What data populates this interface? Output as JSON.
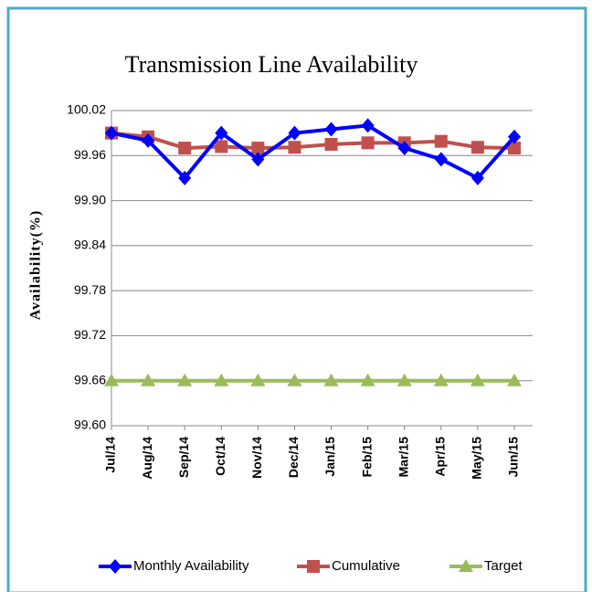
{
  "chart_data": {
    "type": "line",
    "title": "Transmission  Line Availability",
    "y_label": "Availability(%)",
    "categories": [
      "Jul/14",
      "Aug/14",
      "Sep/14",
      "Oct/14",
      "Nov/14",
      "Dec/14",
      "Jan/15",
      "Feb/15",
      "Mar/15",
      "Apr/15",
      "May/15",
      "Jun/15"
    ],
    "series": [
      {
        "name": "Monthly Availability",
        "color": "#0000ff",
        "marker": "diamond",
        "values": [
          99.99,
          99.98,
          99.93,
          99.99,
          99.955,
          99.99,
          99.995,
          100.0,
          99.97,
          99.955,
          99.93,
          99.985
        ]
      },
      {
        "name": "Cumulative",
        "color": "#c0504d",
        "marker": "square",
        "values": [
          99.99,
          99.985,
          99.97,
          99.972,
          99.97,
          99.971,
          99.975,
          99.977,
          99.977,
          99.979,
          99.971,
          99.97
        ]
      },
      {
        "name": "Target",
        "color": "#9bbb59",
        "marker": "triangle",
        "values": [
          99.66,
          99.66,
          99.66,
          99.66,
          99.66,
          99.66,
          99.66,
          99.66,
          99.66,
          99.66,
          99.66,
          99.66
        ]
      }
    ],
    "ylim": [
      99.6,
      100.02
    ],
    "yticks": [
      {
        "value": 99.6,
        "label": "99.60"
      },
      99.66,
      99.72,
      99.78,
      99.84,
      {
        "value": 99.9,
        "label": "99.90"
      },
      99.96,
      100.02
    ],
    "grid": true,
    "legend": "bottom"
  }
}
